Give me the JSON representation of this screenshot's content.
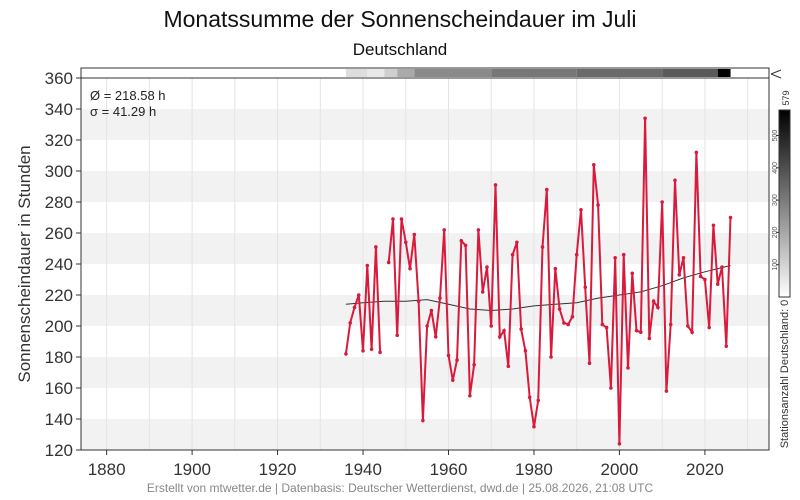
{
  "title": "Monatssumme der Sonnenscheindauer im Juli",
  "subtitle": "Deutschland",
  "footer": "Erstellt von mtwetter.de | Datenbasis: Deutscher Wetterdienst, dwd.de | 25.08.2026, 21:08 UTC",
  "stats": {
    "mean": "Ø = 218.58 h",
    "sd": "σ = 41.29 h"
  },
  "colors": {
    "series": "#d81b3c",
    "trend": "#333333",
    "band": "#f2f2f2",
    "grid": "#e4e4e4"
  },
  "station_bar": {
    "label": "Stationsanzahl Deutschland: 0",
    "max_label": "579",
    "max": 579,
    "ticks": [
      100,
      200,
      300,
      400,
      500
    ]
  },
  "chart_data": {
    "type": "line",
    "title": "Monatssumme der Sonnenscheindauer im Juli",
    "subtitle": "Deutschland",
    "xlabel": "",
    "ylabel": "Sonnenscheindauer in Stunden",
    "xlim": [
      1874,
      2035
    ],
    "ylim": [
      120,
      360
    ],
    "xticks": [
      1880,
      1900,
      1920,
      1940,
      1960,
      1980,
      2000,
      2020
    ],
    "yticks": [
      120,
      140,
      160,
      180,
      200,
      220,
      240,
      260,
      280,
      300,
      320,
      340,
      360
    ],
    "grid": true,
    "series": [
      {
        "name": "",
        "x": [
          1936,
          1937,
          1938,
          1939,
          1940,
          1941,
          1942,
          1943,
          1944,
          1945,
          1946,
          1947,
          1948,
          1949,
          1950,
          1951,
          1952,
          1953,
          1954,
          1955,
          1956,
          1957,
          1958,
          1959,
          1960,
          1961,
          1962,
          1963,
          1964,
          1965,
          1966,
          1967,
          1968,
          1969,
          1970,
          1971,
          1972,
          1973,
          1974,
          1975,
          1976,
          1977,
          1978,
          1979,
          1980,
          1981,
          1982,
          1983,
          1984,
          1985,
          1986,
          1987,
          1988,
          1989,
          1990,
          1991,
          1992,
          1993,
          1994,
          1995,
          1996,
          1997,
          1998,
          1999,
          2000,
          2001,
          2002,
          2003,
          2004,
          2005,
          2006,
          2007,
          2008,
          2009,
          2010,
          2011,
          2012,
          2013,
          2014,
          2015,
          2016,
          2017,
          2018,
          2019,
          2020,
          2021,
          2022,
          2023,
          2024,
          2025,
          2026
        ],
        "y": [
          182,
          202,
          212,
          220,
          184,
          239,
          185,
          251,
          183,
          null,
          241,
          269,
          194,
          269,
          254,
          237,
          259,
          216,
          139,
          200,
          210,
          193,
          218,
          262,
          181,
          165,
          178,
          255,
          252,
          155,
          175,
          262,
          222,
          238,
          200,
          291,
          193,
          197,
          174,
          246,
          254,
          198,
          184,
          154,
          135,
          152,
          251,
          288,
          180,
          237,
          211,
          202,
          201,
          206,
          246,
          275,
          225,
          176,
          304,
          278,
          201,
          199,
          160,
          244,
          124,
          246,
          173,
          234,
          197,
          196,
          334,
          192,
          216,
          212,
          280,
          158,
          201,
          294,
          233,
          244,
          200,
          196,
          312,
          232,
          230,
          199,
          265,
          227,
          238,
          187,
          270
        ]
      },
      {
        "name": "",
        "x": [
          1936,
          1940,
          1945,
          1950,
          1955,
          1960,
          1965,
          1970,
          1975,
          1980,
          1985,
          1990,
          1995,
          2000,
          2005,
          2010,
          2015,
          2020,
          2026
        ],
        "y": [
          214,
          215,
          216,
          216,
          217,
          214,
          211,
          210,
          211,
          213,
          214,
          215,
          218,
          220,
          222,
          226,
          231,
          235,
          239
        ]
      }
    ]
  }
}
